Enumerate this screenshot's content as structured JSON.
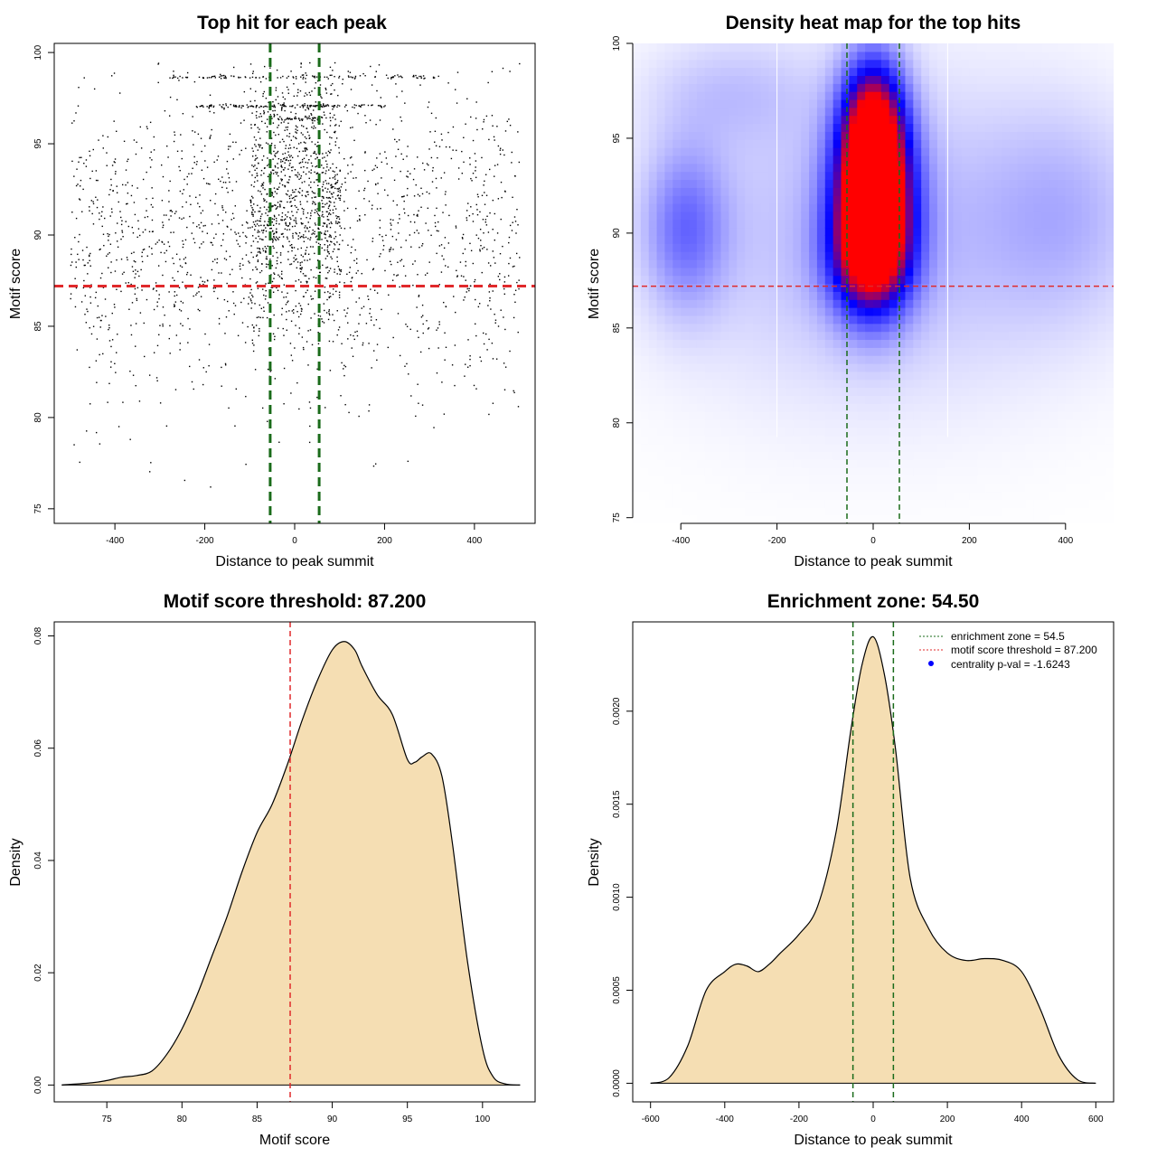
{
  "colors": {
    "threshold": "#e0292b",
    "zone": "#1a6b1a",
    "density_fill": "#f5deb3",
    "heat_low": "#ffffff",
    "heat_mid": "#0000ff",
    "heat_high": "#ff0000"
  },
  "chart_data": [
    {
      "type": "scatter",
      "title": "Top hit for each peak",
      "xlabel": "Distance to peak summit",
      "ylabel": "Motif score",
      "xlim": [
        -535,
        535
      ],
      "ylim": [
        74.2,
        100.5
      ],
      "xticks": [
        -400,
        -200,
        0,
        200,
        400
      ],
      "yticks": [
        75,
        80,
        85,
        90,
        95,
        100
      ],
      "hlines": [
        {
          "y": 87.2,
          "color": "threshold"
        }
      ],
      "vlines": [
        {
          "x": -54.5,
          "color": "zone"
        },
        {
          "x": 54.5,
          "color": "zone"
        }
      ],
      "points_description": "approx. 3000 points, x uniform in [-500, 500], y mostly 75-100 with central enrichment",
      "point_clusters": [
        {
          "x_range": [
            -500,
            500
          ],
          "y_center": 90,
          "y_sd": 4.5,
          "n": 1600
        },
        {
          "x_range": [
            -100,
            100
          ],
          "y_center": 92,
          "y_sd": 3.5,
          "n": 900
        },
        {
          "x_range": [
            -280,
            320
          ],
          "y_center": 98.7,
          "y_sd": 0.05,
          "n": 120
        },
        {
          "x_range": [
            -220,
            200
          ],
          "y_center": 97.1,
          "y_sd": 0.05,
          "n": 140
        },
        {
          "x_range": [
            -40,
            60
          ],
          "y_center": 96.4,
          "y_sd": 0.05,
          "n": 40
        }
      ]
    },
    {
      "type": "heatmap",
      "title": "Density heat map for the top hits",
      "xlabel": "Distance to peak summit",
      "ylabel": "Motif score",
      "xlim": [
        -500,
        500
      ],
      "ylim": [
        74.7,
        100
      ],
      "xticks": [
        -400,
        -200,
        0,
        200,
        400
      ],
      "yticks": [
        75,
        80,
        85,
        90,
        95,
        100
      ],
      "hlines": [
        {
          "y": 87.2,
          "color": "threshold"
        }
      ],
      "vlines": [
        {
          "x": -54.5,
          "color": "zone"
        },
        {
          "x": 54.5,
          "color": "zone"
        }
      ],
      "white_vlines": [
        -200,
        155
      ],
      "density_blobs": [
        {
          "x": 0,
          "y": 91.5,
          "sx": 55,
          "sy": 3.2,
          "w": 1.0
        },
        {
          "x": 0,
          "y": 96,
          "sx": 45,
          "sy": 2.5,
          "w": 0.55
        },
        {
          "x": -10,
          "y": 88.5,
          "sx": 60,
          "sy": 2.0,
          "w": 0.3
        },
        {
          "x": -390,
          "y": 90.3,
          "sx": 60,
          "sy": 3.0,
          "w": 0.22
        },
        {
          "x": 0,
          "y": 90,
          "sx": 300,
          "sy": 6,
          "w": 0.13
        },
        {
          "x": 400,
          "y": 91,
          "sx": 120,
          "sy": 4,
          "w": 0.1
        },
        {
          "x": -300,
          "y": 97.5,
          "sx": 120,
          "sy": 2,
          "w": 0.08
        }
      ]
    },
    {
      "type": "area",
      "title": "Motif score threshold: 87.200",
      "xlabel": "Motif score",
      "ylabel": "Density",
      "xlim": [
        71.5,
        103.5
      ],
      "ylim": [
        -0.003,
        0.0825
      ],
      "xticks": [
        75,
        80,
        85,
        90,
        95,
        100
      ],
      "yticks": [
        0.0,
        0.02,
        0.04,
        0.06,
        0.08
      ],
      "ytick_labels": [
        "0.00",
        "0.02",
        "0.04",
        "0.06",
        "0.08"
      ],
      "vlines": [
        {
          "x": 87.2,
          "color": "threshold"
        }
      ],
      "x": [
        72,
        74,
        75,
        76,
        77,
        78,
        79,
        80,
        81,
        82,
        83,
        84,
        85,
        86,
        87,
        88,
        89,
        90,
        90.8,
        91.5,
        92,
        93,
        94,
        95,
        95.5,
        96,
        96.6,
        97.3,
        98,
        99,
        100,
        100.7,
        101.5,
        102.5
      ],
      "y": [
        0.0,
        0.0004,
        0.0008,
        0.0014,
        0.0017,
        0.0025,
        0.0055,
        0.01,
        0.016,
        0.023,
        0.03,
        0.038,
        0.045,
        0.05,
        0.057,
        0.065,
        0.072,
        0.0775,
        0.079,
        0.0775,
        0.0745,
        0.0695,
        0.066,
        0.058,
        0.0575,
        0.0585,
        0.059,
        0.055,
        0.043,
        0.022,
        0.0065,
        0.0015,
        0.0002,
        0.0
      ]
    },
    {
      "type": "area",
      "title": "Enrichment zone: 54.50",
      "xlabel": "Distance to peak summit",
      "ylabel": "Density",
      "xlim": [
        -648,
        648
      ],
      "ylim": [
        -0.0001,
        0.00248
      ],
      "xticks": [
        -600,
        -400,
        -200,
        0,
        200,
        400,
        600
      ],
      "yticks": [
        0.0,
        0.0005,
        0.001,
        0.0015,
        0.002
      ],
      "ytick_labels": [
        "0.0000",
        "0.0005",
        "0.0010",
        "0.0015",
        "0.0020"
      ],
      "vlines": [
        {
          "x": -54.5,
          "color": "zone"
        },
        {
          "x": 54.5,
          "color": "zone"
        }
      ],
      "x": [
        -600,
        -550,
        -500,
        -450,
        -400,
        -370,
        -340,
        -310,
        -280,
        -250,
        -200,
        -150,
        -100,
        -60,
        -30,
        0,
        30,
        60,
        100,
        150,
        200,
        250,
        300,
        350,
        400,
        450,
        500,
        550,
        600
      ],
      "y": [
        0.0,
        3e-05,
        0.0002,
        0.0005,
        0.0006,
        0.00064,
        0.00063,
        0.0006,
        0.00064,
        0.0007,
        0.0008,
        0.00095,
        0.00135,
        0.0019,
        0.00225,
        0.0024,
        0.0022,
        0.0018,
        0.0011,
        0.00083,
        0.0007,
        0.00066,
        0.00067,
        0.00066,
        0.0006,
        0.0004,
        0.00015,
        2e-05,
        0.0
      ],
      "legend": [
        {
          "label": "enrichment zone = 54.5",
          "style": "dotted",
          "color": "zone"
        },
        {
          "label": "motif score threshold = 87.200",
          "style": "dotted",
          "color": "threshold"
        },
        {
          "label": "centrality p-val = -1.6243",
          "style": "point",
          "color": "#0000ff"
        }
      ]
    }
  ]
}
